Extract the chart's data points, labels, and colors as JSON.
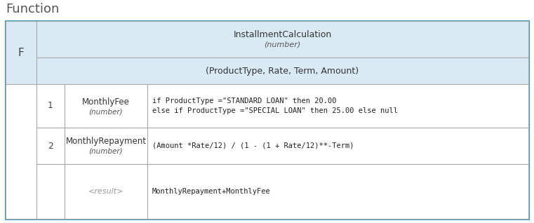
{
  "title": "Function",
  "title_fontsize": 13,
  "title_color": "#555555",
  "outer_border_color": "#3a9cc8",
  "inner_border_color": "#aaaaaa",
  "header_bg_color": "#daeaf5",
  "white_bg": "#ffffff",
  "f_label": "F",
  "function_name": "InstallmentCalculation",
  "function_type": "(number)",
  "params": "(ProductType, Rate, Term, Amount)",
  "rows": [
    {
      "index": "1",
      "name": "MonthlyFee",
      "name_type": "(number)",
      "expression": "if ProductType =\"STANDARD LOAN\" then 20.00\nelse if ProductType =\"SPECIAL LOAN\" then 25.00 else null"
    },
    {
      "index": "2",
      "name": "MonthlyRepayment",
      "name_type": "(number)",
      "expression": "(Amount *Rate/12) / (1 - (1 + Rate/12)**-Term)"
    },
    {
      "index": "",
      "name": "<result>",
      "name_type": "",
      "expression": "MonthlyRepayment+MonthlyFee"
    }
  ],
  "fig_w": 7.61,
  "fig_h": 3.18,
  "dpi": 100
}
